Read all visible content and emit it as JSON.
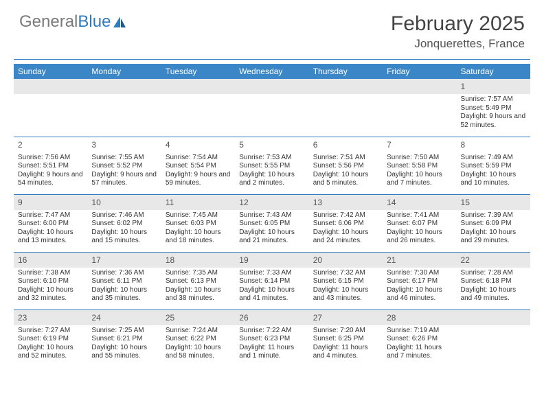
{
  "logo": {
    "text_gray": "General",
    "text_blue": "Blue"
  },
  "title": "February 2025",
  "location": "Jonquerettes, France",
  "header_bg": "#3b86c7",
  "rule_color": "#2f7bbf",
  "shaded_bg": "#e8e8e8",
  "day_headers": [
    "Sunday",
    "Monday",
    "Tuesday",
    "Wednesday",
    "Thursday",
    "Friday",
    "Saturday"
  ],
  "weeks": [
    {
      "shaded": true,
      "days": [
        null,
        null,
        null,
        null,
        null,
        null,
        {
          "n": "1",
          "sunrise": "Sunrise: 7:57 AM",
          "sunset": "Sunset: 5:49 PM",
          "daylight": "Daylight: 9 hours and 52 minutes."
        }
      ]
    },
    {
      "shaded": false,
      "days": [
        {
          "n": "2",
          "sunrise": "Sunrise: 7:56 AM",
          "sunset": "Sunset: 5:51 PM",
          "daylight": "Daylight: 9 hours and 54 minutes."
        },
        {
          "n": "3",
          "sunrise": "Sunrise: 7:55 AM",
          "sunset": "Sunset: 5:52 PM",
          "daylight": "Daylight: 9 hours and 57 minutes."
        },
        {
          "n": "4",
          "sunrise": "Sunrise: 7:54 AM",
          "sunset": "Sunset: 5:54 PM",
          "daylight": "Daylight: 9 hours and 59 minutes."
        },
        {
          "n": "5",
          "sunrise": "Sunrise: 7:53 AM",
          "sunset": "Sunset: 5:55 PM",
          "daylight": "Daylight: 10 hours and 2 minutes."
        },
        {
          "n": "6",
          "sunrise": "Sunrise: 7:51 AM",
          "sunset": "Sunset: 5:56 PM",
          "daylight": "Daylight: 10 hours and 5 minutes."
        },
        {
          "n": "7",
          "sunrise": "Sunrise: 7:50 AM",
          "sunset": "Sunset: 5:58 PM",
          "daylight": "Daylight: 10 hours and 7 minutes."
        },
        {
          "n": "8",
          "sunrise": "Sunrise: 7:49 AM",
          "sunset": "Sunset: 5:59 PM",
          "daylight": "Daylight: 10 hours and 10 minutes."
        }
      ]
    },
    {
      "shaded": true,
      "days": [
        {
          "n": "9",
          "sunrise": "Sunrise: 7:47 AM",
          "sunset": "Sunset: 6:00 PM",
          "daylight": "Daylight: 10 hours and 13 minutes."
        },
        {
          "n": "10",
          "sunrise": "Sunrise: 7:46 AM",
          "sunset": "Sunset: 6:02 PM",
          "daylight": "Daylight: 10 hours and 15 minutes."
        },
        {
          "n": "11",
          "sunrise": "Sunrise: 7:45 AM",
          "sunset": "Sunset: 6:03 PM",
          "daylight": "Daylight: 10 hours and 18 minutes."
        },
        {
          "n": "12",
          "sunrise": "Sunrise: 7:43 AM",
          "sunset": "Sunset: 6:05 PM",
          "daylight": "Daylight: 10 hours and 21 minutes."
        },
        {
          "n": "13",
          "sunrise": "Sunrise: 7:42 AM",
          "sunset": "Sunset: 6:06 PM",
          "daylight": "Daylight: 10 hours and 24 minutes."
        },
        {
          "n": "14",
          "sunrise": "Sunrise: 7:41 AM",
          "sunset": "Sunset: 6:07 PM",
          "daylight": "Daylight: 10 hours and 26 minutes."
        },
        {
          "n": "15",
          "sunrise": "Sunrise: 7:39 AM",
          "sunset": "Sunset: 6:09 PM",
          "daylight": "Daylight: 10 hours and 29 minutes."
        }
      ]
    },
    {
      "shaded": true,
      "days": [
        {
          "n": "16",
          "sunrise": "Sunrise: 7:38 AM",
          "sunset": "Sunset: 6:10 PM",
          "daylight": "Daylight: 10 hours and 32 minutes."
        },
        {
          "n": "17",
          "sunrise": "Sunrise: 7:36 AM",
          "sunset": "Sunset: 6:11 PM",
          "daylight": "Daylight: 10 hours and 35 minutes."
        },
        {
          "n": "18",
          "sunrise": "Sunrise: 7:35 AM",
          "sunset": "Sunset: 6:13 PM",
          "daylight": "Daylight: 10 hours and 38 minutes."
        },
        {
          "n": "19",
          "sunrise": "Sunrise: 7:33 AM",
          "sunset": "Sunset: 6:14 PM",
          "daylight": "Daylight: 10 hours and 41 minutes."
        },
        {
          "n": "20",
          "sunrise": "Sunrise: 7:32 AM",
          "sunset": "Sunset: 6:15 PM",
          "daylight": "Daylight: 10 hours and 43 minutes."
        },
        {
          "n": "21",
          "sunrise": "Sunrise: 7:30 AM",
          "sunset": "Sunset: 6:17 PM",
          "daylight": "Daylight: 10 hours and 46 minutes."
        },
        {
          "n": "22",
          "sunrise": "Sunrise: 7:28 AM",
          "sunset": "Sunset: 6:18 PM",
          "daylight": "Daylight: 10 hours and 49 minutes."
        }
      ]
    },
    {
      "shaded": true,
      "days": [
        {
          "n": "23",
          "sunrise": "Sunrise: 7:27 AM",
          "sunset": "Sunset: 6:19 PM",
          "daylight": "Daylight: 10 hours and 52 minutes."
        },
        {
          "n": "24",
          "sunrise": "Sunrise: 7:25 AM",
          "sunset": "Sunset: 6:21 PM",
          "daylight": "Daylight: 10 hours and 55 minutes."
        },
        {
          "n": "25",
          "sunrise": "Sunrise: 7:24 AM",
          "sunset": "Sunset: 6:22 PM",
          "daylight": "Daylight: 10 hours and 58 minutes."
        },
        {
          "n": "26",
          "sunrise": "Sunrise: 7:22 AM",
          "sunset": "Sunset: 6:23 PM",
          "daylight": "Daylight: 11 hours and 1 minute."
        },
        {
          "n": "27",
          "sunrise": "Sunrise: 7:20 AM",
          "sunset": "Sunset: 6:25 PM",
          "daylight": "Daylight: 11 hours and 4 minutes."
        },
        {
          "n": "28",
          "sunrise": "Sunrise: 7:19 AM",
          "sunset": "Sunset: 6:26 PM",
          "daylight": "Daylight: 11 hours and 7 minutes."
        },
        null
      ]
    }
  ]
}
